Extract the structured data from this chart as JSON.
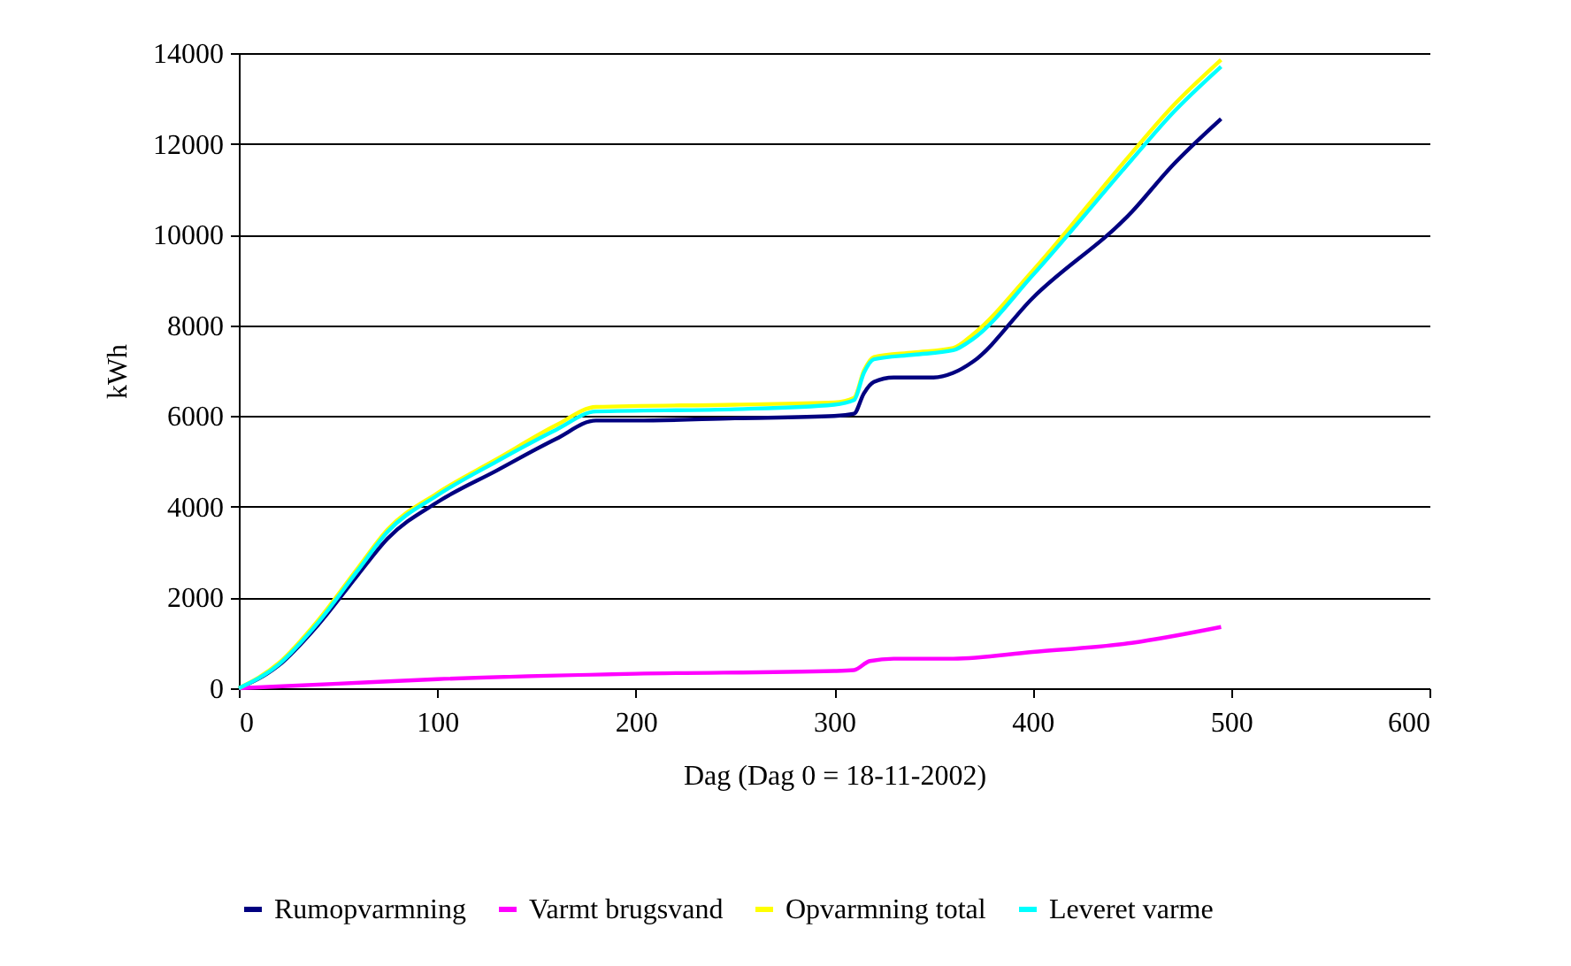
{
  "chart_data": {
    "type": "line",
    "xlabel": "Dag (Dag 0 = 18-11-2002)",
    "ylabel": "kWh",
    "xlim": [
      0,
      600
    ],
    "xticks": [
      0,
      100,
      200,
      300,
      400,
      500,
      600
    ],
    "ylim": [
      0,
      14000
    ],
    "yticks": [
      0,
      2000,
      4000,
      6000,
      8000,
      10000,
      12000,
      14000
    ],
    "grid": "y",
    "legend": "bottom",
    "marker": "none",
    "line_style": "solid",
    "series": [
      {
        "name": "Rumopvarmning",
        "color": "#000080",
        "x": [
          0,
          20,
          40,
          60,
          75,
          100,
          130,
          160,
          180,
          200,
          250,
          300,
          310,
          315,
          320,
          330,
          350,
          360,
          370,
          400,
          450,
          470,
          495
        ],
        "values": [
          0,
          500,
          1400,
          2500,
          3300,
          4100,
          4800,
          5500,
          5900,
          5900,
          5950,
          6000,
          6050,
          6500,
          6750,
          6850,
          6850,
          6950,
          7200,
          8600,
          10500,
          11500,
          12550
        ]
      },
      {
        "name": "Varmt brugsvand",
        "color": "#ff00ff",
        "x": [
          0,
          50,
          100,
          200,
          300,
          310,
          318,
          330,
          360,
          400,
          450,
          495
        ],
        "values": [
          0,
          100,
          200,
          320,
          380,
          400,
          600,
          650,
          650,
          800,
          1000,
          1350
        ]
      },
      {
        "name": "Opvarmning total",
        "color": "#ffff00",
        "x": [
          0,
          20,
          40,
          60,
          75,
          100,
          130,
          160,
          180,
          250,
          300,
          310,
          315,
          320,
          340,
          360,
          370,
          400,
          450,
          470,
          495
        ],
        "values": [
          0,
          550,
          1500,
          2650,
          3500,
          4300,
          5050,
          5800,
          6200,
          6250,
          6300,
          6400,
          7000,
          7300,
          7400,
          7500,
          7800,
          9200,
          11800,
          12800,
          13850
        ]
      },
      {
        "name": "Leveret varme",
        "color": "#00ffff",
        "x": [
          0,
          20,
          40,
          60,
          75,
          100,
          130,
          160,
          180,
          250,
          300,
          310,
          315,
          320,
          340,
          360,
          370,
          400,
          450,
          470,
          495
        ],
        "values": [
          0,
          520,
          1450,
          2600,
          3450,
          4250,
          5000,
          5700,
          6100,
          6150,
          6250,
          6350,
          6950,
          7250,
          7350,
          7450,
          7700,
          9100,
          11650,
          12650,
          13700
        ]
      }
    ]
  }
}
